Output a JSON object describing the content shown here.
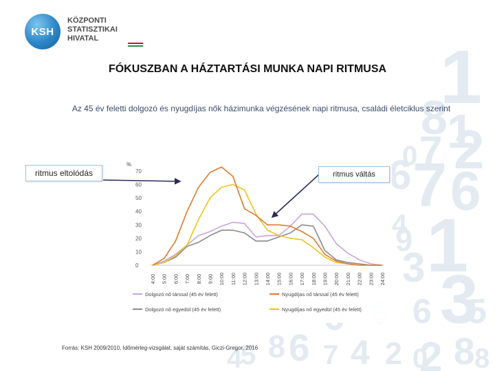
{
  "logo": {
    "badge": "KSH",
    "line1": "KÖZPONTI",
    "line2": "STATISZTIKAI",
    "line3": "HIVATAL",
    "flag_colors": [
      "#c8102e",
      "#ffffff",
      "#2e8b3a"
    ]
  },
  "title": "FÓKUSZBAN A HÁZTARTÁSI MUNKA NAPI RITMUSA",
  "subtitle": "Az 45 év feletti dolgozó és nyugdíjas nők házimunka végzésének napi ritmusa, családi életciklus szerint",
  "callouts": {
    "left": "ritmus eltolódás",
    "right": "ritmus váltás"
  },
  "source": "Forrás: KSH 2009/2010, Időmérleg-vizsgálat, saját számítás, Giczi-Gregor, 2016",
  "background_digits": [
    "1",
    "8",
    "1",
    "0",
    "7",
    "2",
    "6",
    "7",
    "6",
    "4",
    "9",
    "3",
    "1",
    "3",
    "5",
    "0",
    "6",
    "5",
    "8",
    "8",
    "6",
    "7",
    "4",
    "2",
    "0",
    "4",
    "5",
    "2",
    "8"
  ],
  "chart_data": {
    "type": "line",
    "ylabel": "%",
    "ylim": [
      0,
      70
    ],
    "yticks": [
      0,
      10,
      20,
      30,
      40,
      50,
      60,
      70
    ],
    "x": [
      "4:00",
      "5:00",
      "6:00",
      "7:00",
      "8:00",
      "9:00",
      "10:00",
      "11:00",
      "12:00",
      "13:00",
      "14:00",
      "15:00",
      "16:00",
      "17:00",
      "18:00",
      "19:00",
      "20:00",
      "21:00",
      "22:00",
      "23:00",
      "24:00"
    ],
    "series": [
      {
        "name": "Dolgozó nő társsal (45 év felett)",
        "color": "#c9a3dd",
        "values": [
          0,
          3,
          8,
          15,
          22,
          25,
          29,
          32,
          31,
          21,
          22,
          22,
          29,
          38,
          38,
          29,
          16,
          9,
          4,
          1,
          0
        ]
      },
      {
        "name": "Nyugdíjas nő társsal (45 év felett)",
        "color": "#e07a2e",
        "values": [
          0,
          5,
          18,
          40,
          58,
          69,
          73,
          66,
          42,
          37,
          30,
          30,
          29,
          25,
          20,
          8,
          3,
          1,
          0,
          0,
          0
        ]
      },
      {
        "name": "Dolgozó nő egyedül (45 év felett)",
        "color": "#8a8a8a",
        "values": [
          0,
          2,
          6,
          14,
          17,
          22,
          26,
          26,
          24,
          18,
          18,
          21,
          24,
          30,
          29,
          11,
          4,
          2,
          1,
          0,
          0
        ]
      },
      {
        "name": "Nyugdíjas nő egyedül (45 év felett)",
        "color": "#f2c318",
        "values": [
          0,
          2,
          7,
          15,
          34,
          50,
          58,
          60,
          56,
          38,
          26,
          22,
          20,
          19,
          13,
          6,
          2,
          1,
          0,
          0,
          0
        ]
      }
    ]
  }
}
